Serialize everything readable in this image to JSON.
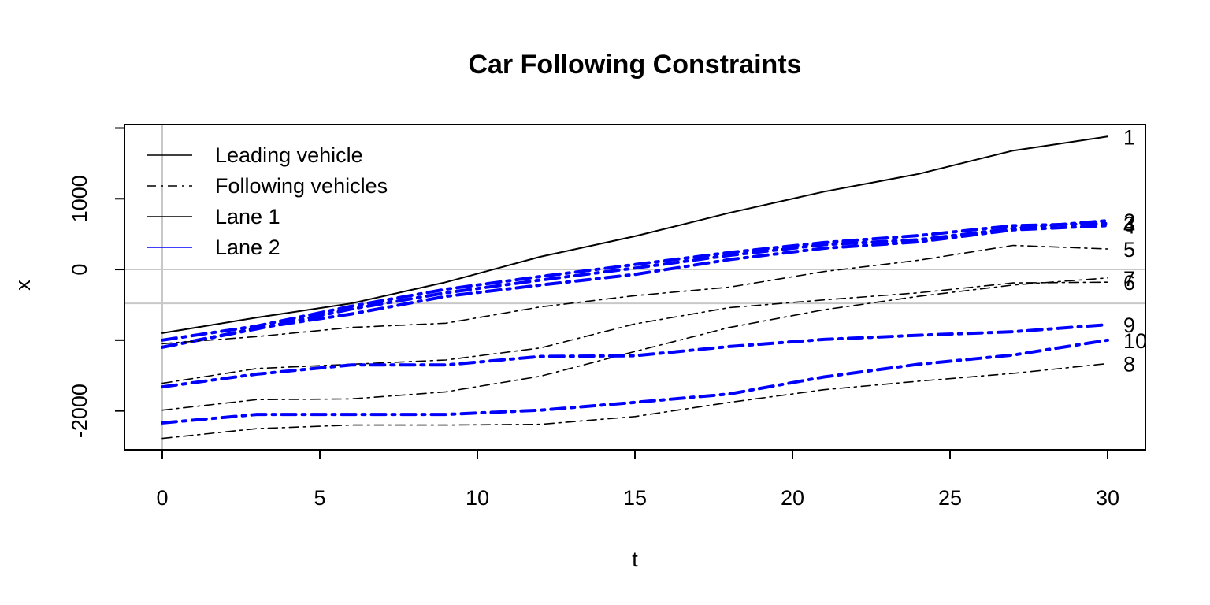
{
  "chart_data": {
    "type": "line",
    "title": "Car Following Constraints",
    "xlabel": "t",
    "ylabel": "x",
    "xlim": [
      -1.2,
      31.2
    ],
    "ylim": [
      -2550,
      2050
    ],
    "x_ticks": [
      "0",
      "5",
      "10",
      "15",
      "20",
      "25",
      "30"
    ],
    "x_tick_values": [
      0,
      5,
      10,
      15,
      20,
      25,
      30
    ],
    "y_ticks": [
      "-2000",
      "0",
      "1000"
    ],
    "y_tick_values": [
      -2000,
      0,
      1000
    ],
    "y_minor_ticks": [
      -2000,
      -1000,
      0,
      1000,
      2000
    ],
    "grid": {
      "vertical_x": 0,
      "horizontal_y": [
        0,
        -480
      ],
      "color": "#c8c8c8"
    },
    "legend": {
      "position": "top-left",
      "entries": [
        {
          "label": "Leading vehicle",
          "style": "solid",
          "color": "#000000"
        },
        {
          "label": "Following vehicles",
          "style": "dashdot",
          "color": "#000000"
        },
        {
          "label": "Lane 1",
          "style": "solid",
          "color": "#000000"
        },
        {
          "label": "Lane 2",
          "style": "solid",
          "color": "#0000ff"
        }
      ]
    },
    "x": [
      0,
      3,
      6,
      9,
      12,
      15,
      18,
      21,
      24,
      27,
      30
    ],
    "series": [
      {
        "name": "1",
        "lane": 1,
        "role": "leading",
        "values": [
          -900,
          -680,
          -480,
          -180,
          180,
          470,
          800,
          1100,
          1350,
          1680,
          1880
        ]
      },
      {
        "name": "2",
        "lane": 2,
        "role": "following",
        "values": [
          -1100,
          -840,
          -560,
          -330,
          -150,
          20,
          200,
          350,
          420,
          580,
          690
        ]
      },
      {
        "name": "3",
        "lane": 2,
        "role": "following",
        "values": [
          -1000,
          -800,
          -520,
          -280,
          -100,
          70,
          240,
          380,
          480,
          620,
          650
        ]
      },
      {
        "name": "4",
        "lane": 2,
        "role": "following",
        "values": [
          -1100,
          -830,
          -630,
          -380,
          -220,
          -70,
          140,
          300,
          390,
          560,
          620
        ]
      },
      {
        "name": "5",
        "lane": 1,
        "role": "following",
        "values": [
          -1050,
          -950,
          -820,
          -760,
          -530,
          -370,
          -250,
          -30,
          130,
          340,
          290
        ]
      },
      {
        "name": "6",
        "lane": 1,
        "role": "following",
        "values": [
          -1610,
          -1400,
          -1340,
          -1280,
          -1110,
          -770,
          -540,
          -430,
          -330,
          -190,
          -180
        ]
      },
      {
        "name": "7",
        "lane": 1,
        "role": "following",
        "values": [
          -1990,
          -1840,
          -1830,
          -1730,
          -1510,
          -1160,
          -820,
          -570,
          -380,
          -220,
          -120
        ]
      },
      {
        "name": "8",
        "lane": 1,
        "role": "following",
        "values": [
          -2390,
          -2250,
          -2200,
          -2200,
          -2190,
          -2080,
          -1880,
          -1700,
          -1580,
          -1470,
          -1330
        ]
      },
      {
        "name": "9",
        "lane": 2,
        "role": "following",
        "values": [
          -1660,
          -1480,
          -1350,
          -1350,
          -1230,
          -1220,
          -1090,
          -990,
          -930,
          -880,
          -780
        ]
      },
      {
        "name": "10",
        "lane": 2,
        "role": "following",
        "values": [
          -2170,
          -2050,
          -2050,
          -2050,
          -1990,
          -1880,
          -1760,
          -1520,
          -1340,
          -1210,
          -1000
        ]
      }
    ],
    "end_labels": [
      "1",
      "3",
      "2",
      "5",
      "4",
      "6",
      "7",
      "9",
      "10",
      "8"
    ]
  }
}
